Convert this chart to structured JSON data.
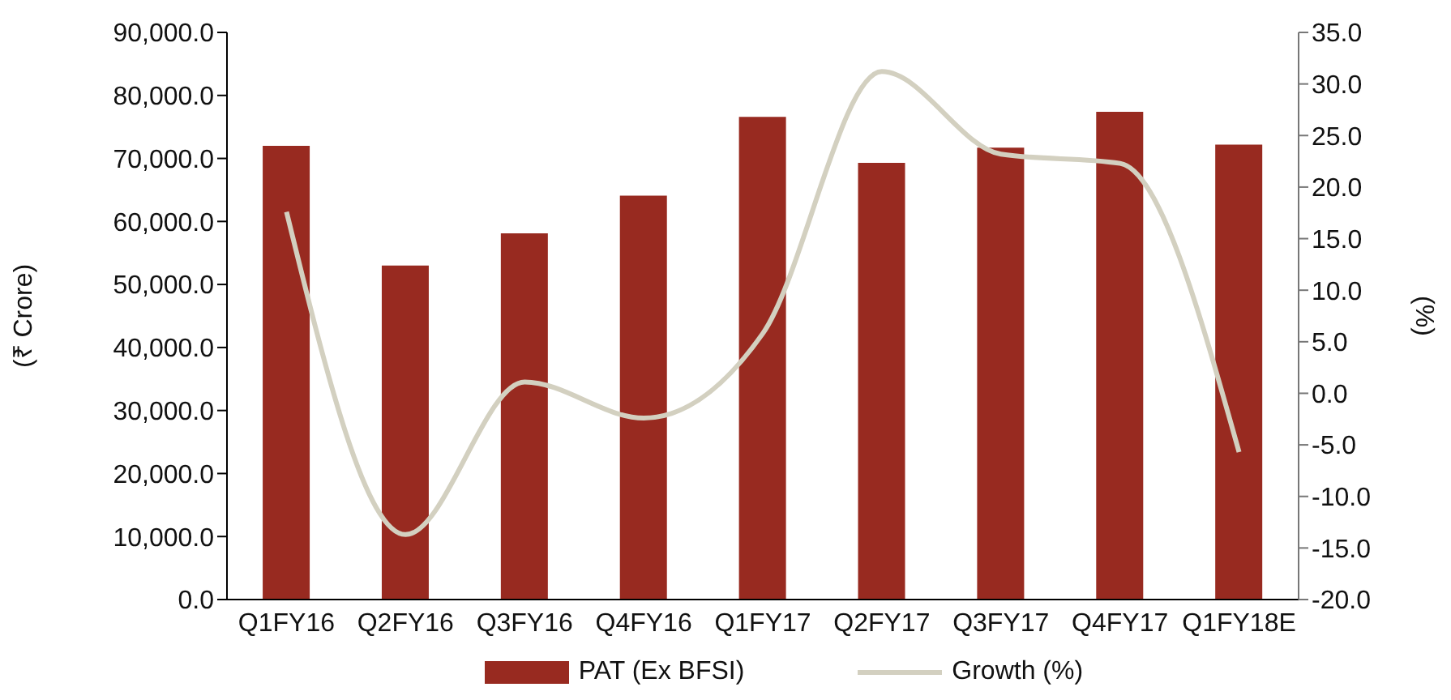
{
  "chart_data": {
    "type": "bar",
    "categories": [
      "Q1FY16",
      "Q2FY16",
      "Q3FY16",
      "Q4FY16",
      "Q1FY17",
      "Q2FY17",
      "Q3FY17",
      "Q4FY17",
      "Q1FY18E"
    ],
    "series": [
      {
        "name": "PAT (Ex BFSI)",
        "color": "#982a20",
        "values": [
          72000,
          53000,
          58100,
          64100,
          76600,
          69300,
          71700,
          77400,
          72200
        ]
      },
      {
        "name": "Growth (%)",
        "type": "line",
        "axis": "y2",
        "color": "#d3d0c0",
        "values": [
          17.6,
          -13.7,
          1.1,
          -2.4,
          5.8,
          31.2,
          23.2,
          22.3,
          -5.7
        ]
      }
    ],
    "ylabel": "(₹ Crore)",
    "y2label": "(%)",
    "ylim": [
      0,
      90000
    ],
    "yticks": [
      {
        "value": 0,
        "label": "0.0"
      },
      {
        "value": 10000,
        "label": "10,000.0"
      },
      {
        "value": 20000,
        "label": "20,000.0"
      },
      {
        "value": 30000,
        "label": "30,000.0"
      },
      {
        "value": 40000,
        "label": "40,000.0"
      },
      {
        "value": 50000,
        "label": "50,000.0"
      },
      {
        "value": 60000,
        "label": "60,000.0"
      },
      {
        "value": 70000,
        "label": "70,000.0"
      },
      {
        "value": 80000,
        "label": "80,000.0"
      },
      {
        "value": 90000,
        "label": "90,000.0"
      }
    ],
    "y2lim": [
      -20,
      35
    ],
    "y2ticks": [
      {
        "value": -20,
        "label": "-20.0"
      },
      {
        "value": -15,
        "label": "-15.0"
      },
      {
        "value": -10,
        "label": "-10.0"
      },
      {
        "value": -5,
        "label": "-5.0"
      },
      {
        "value": 0,
        "label": "0.0"
      },
      {
        "value": 5,
        "label": "5.0"
      },
      {
        "value": 10,
        "label": "10.0"
      },
      {
        "value": 15,
        "label": "15.0"
      },
      {
        "value": 20,
        "label": "20.0"
      },
      {
        "value": 25,
        "label": "25.0"
      },
      {
        "value": 30,
        "label": "30.0"
      },
      {
        "value": 35,
        "label": "35.0"
      }
    ],
    "legend": "bottom"
  }
}
